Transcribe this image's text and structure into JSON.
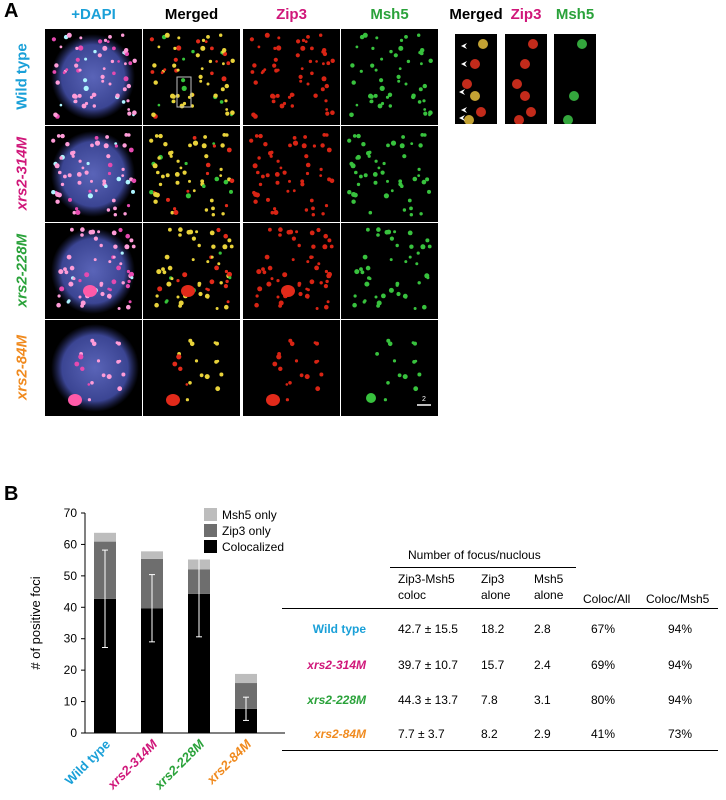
{
  "panel_a": {
    "letter": "A",
    "columns": [
      {
        "label": "+DAPI",
        "color": "#1aa0d8"
      },
      {
        "label": "Merged",
        "color": "#000000"
      },
      {
        "label": "Zip3",
        "color": "#d0177a"
      },
      {
        "label": "Msh5",
        "color": "#2aa23a"
      }
    ],
    "inset_columns": [
      {
        "label": "Merged",
        "color": "#000000"
      },
      {
        "label": "Zip3",
        "color": "#d0177a"
      },
      {
        "label": "Msh5",
        "color": "#2aa23a"
      }
    ],
    "rows": [
      {
        "label": "Wild type",
        "color": "#1aa0d8"
      },
      {
        "label": "xrs2-314M",
        "color": "#d0177a"
      },
      {
        "label": "xrs2-228M",
        "color": "#2aa23a"
      },
      {
        "label": "xrs2-84M",
        "color": "#f08a1e"
      }
    ],
    "scale_bar_label": "2"
  },
  "panel_b": {
    "letter": "B",
    "chart_data": {
      "type": "bar",
      "stacked": true,
      "categories": [
        "Wild type",
        "xrs2-314M",
        "xrs2-228M",
        "xrs2-84M"
      ],
      "category_colors": [
        "#1aa0d8",
        "#d0177a",
        "#2aa23a",
        "#f08a1e"
      ],
      "series": [
        {
          "name": "Colocalized",
          "values": [
            42.7,
            39.7,
            44.3,
            7.7
          ],
          "color": "#000000"
        },
        {
          "name": "Zip3 only",
          "values": [
            18.2,
            15.7,
            7.8,
            8.2
          ],
          "color": "#6e6e6e"
        },
        {
          "name": "Msh5 only",
          "values": [
            2.8,
            2.4,
            3.1,
            2.9
          ],
          "color": "#bdbdbd"
        }
      ],
      "error": [
        15.5,
        10.7,
        13.7,
        3.7
      ],
      "ylabel": "# of positive foci",
      "ylim": [
        0,
        70
      ],
      "yticks": [
        0,
        10,
        20,
        30,
        40,
        50,
        60,
        70
      ],
      "legend_position": "top-right"
    },
    "table": {
      "group_header": "Number of focus/nuclous",
      "headers": [
        [
          "Zip3-Msh5",
          "coloc"
        ],
        [
          "Zip3",
          "alone"
        ],
        [
          "Msh5",
          "alone"
        ],
        [
          "Coloc/All"
        ],
        [
          "Coloc/Msh5"
        ]
      ],
      "rows": [
        {
          "name": "Wild type",
          "color": "#1aa0d8",
          "cells": [
            "42.7 ± 15.5",
            "18.2",
            "2.8",
            "67%",
            "94%"
          ]
        },
        {
          "name": "xrs2-314M",
          "color": "#d0177a",
          "cells": [
            "39.7 ± 10.7",
            "15.7",
            "2.4",
            "69%",
            "94%"
          ]
        },
        {
          "name": "xrs2-228M",
          "color": "#2aa23a",
          "cells": [
            "44.3 ± 13.7",
            "7.8",
            "3.1",
            "80%",
            "94%"
          ]
        },
        {
          "name": "xrs2-84M",
          "color": "#f08a1e",
          "cells": [
            "7.7 ± 3.7",
            "8.2",
            "2.9",
            "41%",
            "73%"
          ]
        }
      ]
    }
  }
}
